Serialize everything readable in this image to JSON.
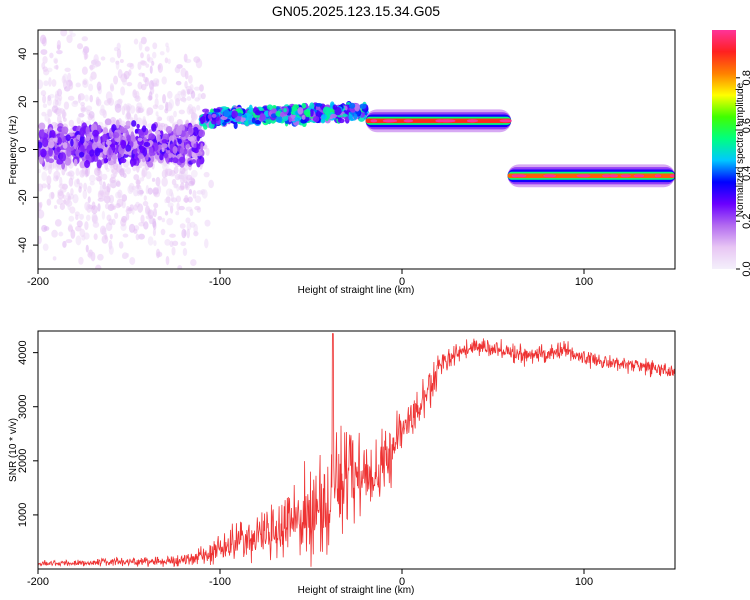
{
  "figure_title": "GN05.2025.123.15.34.G05",
  "chart_data": [
    {
      "type": "heatmap",
      "name": "spectrogram",
      "xlabel": "Height of straight line (km)",
      "ylabel": "Frequency (Hz)",
      "xlim": [
        -200,
        150
      ],
      "ylim": [
        -50,
        50
      ],
      "xticks": [
        -200,
        -100,
        0,
        100
      ],
      "yticks": [
        -40,
        -20,
        0,
        20,
        40
      ],
      "grid": false,
      "colorbar": {
        "label": "Normalized spectral amplitude",
        "range": [
          0,
          1
        ],
        "ticks": [
          0.0,
          0.2,
          0.4,
          0.6,
          0.8
        ],
        "tick_labels": [
          "0.0",
          "0.2",
          "0.4",
          "0.6",
          "0.8"
        ],
        "colormap": [
          "#f4f0fb",
          "#e8c6f4",
          "#b36bf0",
          "#6a00ff",
          "#0000ff",
          "#00c8ff",
          "#00ff80",
          "#40ff00",
          "#ffff00",
          "#ff8000",
          "#ff2020",
          "#ff3399"
        ]
      },
      "features": [
        {
          "x_range": [
            -200,
            -110
          ],
          "freq_center": 0,
          "freq_spread": 40,
          "amplitude": 0.08,
          "note": "diffuse noise"
        },
        {
          "x_range": [
            -200,
            -110
          ],
          "freq_center": 2,
          "freq_spread": 9,
          "amplitude": 0.22
        },
        {
          "x_range": [
            -110,
            -20
          ],
          "freq_center": 13,
          "freq_spread": 5,
          "amplitude": 0.45
        },
        {
          "x_range": [
            -20,
            60
          ],
          "freq_center": 12,
          "freq_spread": 1.5,
          "amplitude": 0.9
        },
        {
          "x_range": [
            58,
            150
          ],
          "freq_center": -11,
          "freq_spread": 1.5,
          "amplitude": 0.85
        }
      ]
    },
    {
      "type": "line",
      "name": "snr",
      "xlabel": "Height of straight line (km)",
      "ylabel": "SNR (10 * v/v)",
      "xlim": [
        -200,
        150
      ],
      "ylim": [
        0,
        4400
      ],
      "xticks": [
        -200,
        -100,
        0,
        100
      ],
      "yticks": [
        1000,
        2000,
        3000,
        4000
      ],
      "grid": false,
      "color": "#ee3333",
      "x": [
        -200,
        -180,
        -160,
        -140,
        -120,
        -110,
        -100,
        -90,
        -80,
        -70,
        -60,
        -50,
        -40,
        -35,
        -30,
        -25,
        -20,
        -15,
        -10,
        -5,
        0,
        5,
        10,
        15,
        20,
        30,
        40,
        50,
        60,
        70,
        80,
        90,
        100,
        110,
        120,
        130,
        140,
        150
      ],
      "y": [
        100,
        110,
        130,
        140,
        160,
        250,
        350,
        550,
        600,
        700,
        850,
        1000,
        1300,
        1500,
        1800,
        1900,
        1700,
        1600,
        1900,
        2250,
        2600,
        2750,
        3000,
        3250,
        3750,
        4000,
        4100,
        4050,
        4000,
        3950,
        4000,
        4050,
        3900,
        3850,
        3800,
        3750,
        3700,
        3650
      ],
      "noise": [
        40,
        40,
        50,
        60,
        80,
        120,
        180,
        250,
        300,
        400,
        500,
        600,
        700,
        700,
        700,
        650,
        600,
        500,
        450,
        400,
        350,
        300,
        280,
        250,
        200,
        150,
        120,
        120,
        120,
        120,
        120,
        120,
        110,
        100,
        100,
        100,
        100,
        100
      ],
      "spike": {
        "x": -38,
        "y": 4350
      }
    }
  ]
}
